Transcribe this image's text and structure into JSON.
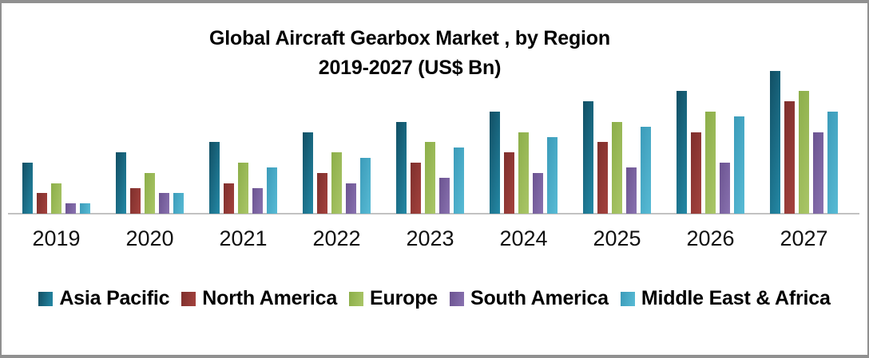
{
  "title": {
    "line1": "Global Aircraft Gearbox Market , by Region",
    "line2": "2019-2027 (US$ Bn)"
  },
  "chart_data": {
    "type": "bar",
    "title": "Global Aircraft Gearbox Market , by Region",
    "subtitle": "2019-2027 (US$ Bn)",
    "unit": "US$ Bn",
    "xlabel": "",
    "ylabel": "",
    "y_axis_visible": false,
    "gridlines": false,
    "legend_position": "bottom",
    "ylim": [
      0,
      14.5
    ],
    "categories": [
      "2019",
      "2020",
      "2021",
      "2022",
      "2023",
      "2024",
      "2025",
      "2026",
      "2027"
    ],
    "series": [
      {
        "name": "Asia Pacific",
        "color": "#1D6D89",
        "gradient": [
          "#114E63",
          "#2489A6"
        ],
        "values": [
          5,
          6,
          7,
          8,
          9,
          10,
          11,
          12,
          14
        ]
      },
      {
        "name": "North America",
        "color": "#953A36",
        "gradient": [
          "#7E2F2C",
          "#A4423E"
        ],
        "values": [
          2,
          2.5,
          3,
          4,
          5,
          6,
          7,
          8,
          11
        ]
      },
      {
        "name": "Europe",
        "color": "#9DBC5A",
        "gradient": [
          "#8CAE49",
          "#AAC668"
        ],
        "values": [
          3,
          4,
          5,
          6,
          7,
          8,
          9,
          10,
          12
        ]
      },
      {
        "name": "South America",
        "color": "#7C63A4",
        "gradient": [
          "#6B5390",
          "#8972B0"
        ],
        "values": [
          1,
          2,
          2.5,
          3,
          3.5,
          4,
          4.5,
          5,
          8
        ]
      },
      {
        "name": "Middle East & Africa",
        "color": "#48ADC9",
        "gradient": [
          "#3B9BB9",
          "#58BBD5"
        ],
        "values": [
          1,
          2,
          4.5,
          5.5,
          6.5,
          7.5,
          8.5,
          9.5,
          10
        ]
      }
    ]
  },
  "axis": {
    "baseline_color": "#C2C2C2",
    "label_color": "#111111"
  },
  "frame": {
    "background": "#FFFFFF",
    "border_color": "#909090"
  }
}
